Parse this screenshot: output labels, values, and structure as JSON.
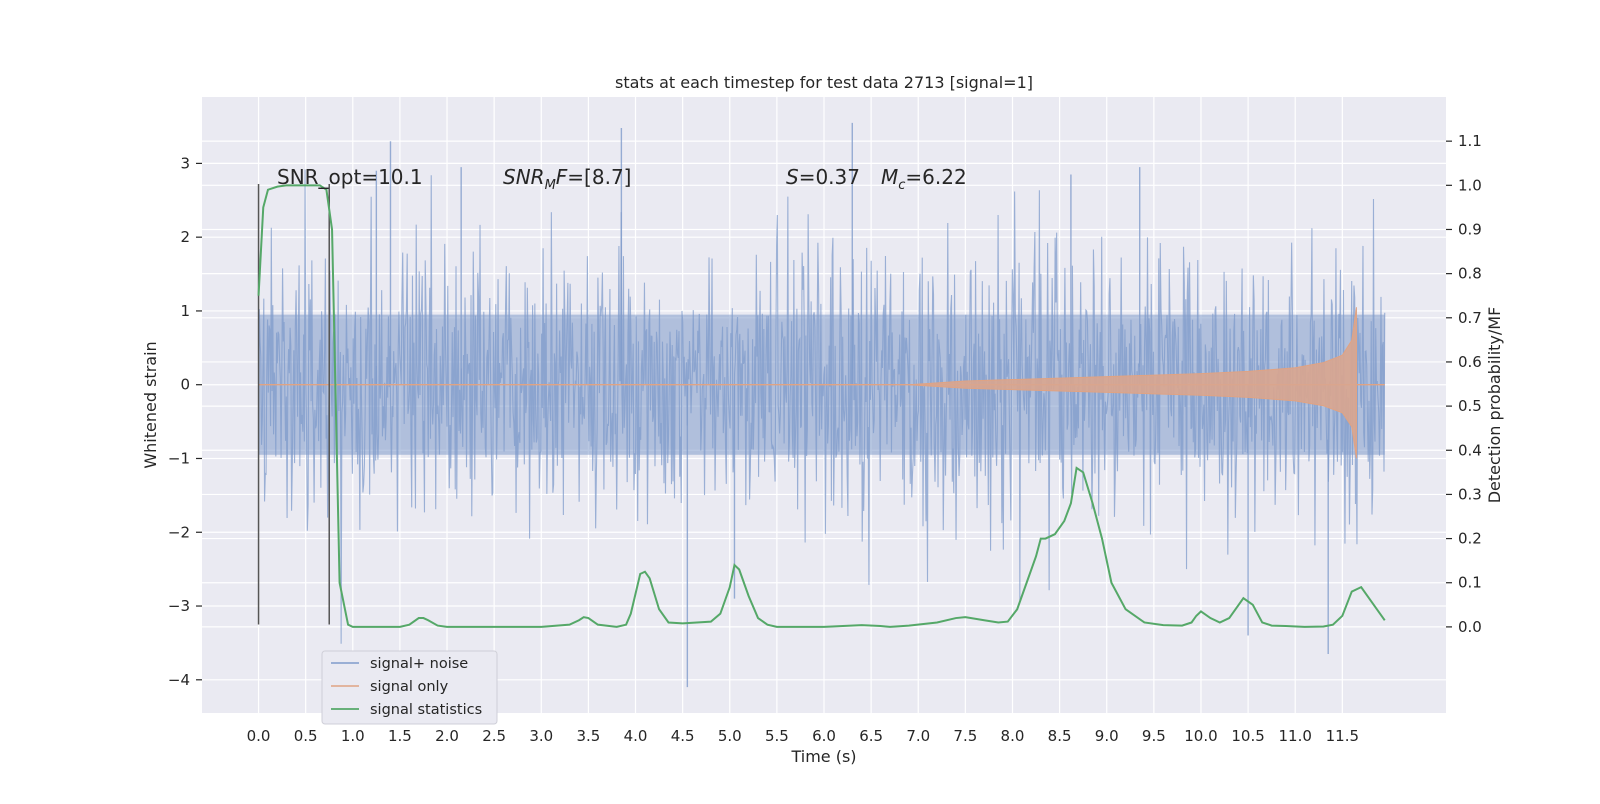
{
  "chart_data": {
    "type": "line",
    "title": "stats at each timestep for test data 2713 [signal=1]",
    "xlabel": "Time (s)",
    "ylabel": "Whitened strain",
    "y2label": "Detection probability/MF",
    "xlim": [
      -0.6,
      12.6
    ],
    "ylim": [
      -4.45,
      3.9
    ],
    "y2lim": [
      -0.195,
      1.2
    ],
    "x_ticks": [
      0.0,
      0.5,
      1.0,
      1.5,
      2.0,
      2.5,
      3.0,
      3.5,
      4.0,
      4.5,
      5.0,
      5.5,
      6.0,
      6.5,
      7.0,
      7.5,
      8.0,
      8.5,
      9.0,
      9.5,
      10.0,
      10.5,
      11.0,
      11.5
    ],
    "x_tick_labels": [
      "0.0",
      "0.5",
      "1.0",
      "1.5",
      "2.0",
      "2.5",
      "3.0",
      "3.5",
      "4.0",
      "4.5",
      "5.0",
      "5.5",
      "6.0",
      "6.5",
      "7.0",
      "7.5",
      "8.0",
      "8.5",
      "9.0",
      "9.5",
      "10.0",
      "10.5",
      "11.0",
      "11.5"
    ],
    "y_ticks": [
      -4,
      -3,
      -2,
      -1,
      0,
      1,
      2,
      3
    ],
    "y_tick_labels": [
      "−4",
      "−3",
      "−2",
      "−1",
      "0",
      "1",
      "2",
      "3"
    ],
    "y2_ticks": [
      0.0,
      0.1,
      0.2,
      0.3,
      0.4,
      0.5,
      0.6,
      0.7,
      0.8,
      0.9,
      1.0,
      1.1
    ],
    "y2_tick_labels": [
      "0.0",
      "0.1",
      "0.2",
      "0.3",
      "0.4",
      "0.5",
      "0.6",
      "0.7",
      "0.8",
      "0.9",
      "1.0",
      "1.1"
    ],
    "grid": true,
    "legend_position": "lower-left",
    "series": [
      {
        "name": "signal+ noise",
        "color": "#7f9bcb",
        "description_values": "dense whitened noise between about -4.1 and 3.55 over 0.0-11.95 s",
        "x_range": [
          0.0,
          11.95
        ],
        "y_extremes": [
          -4.1,
          3.55
        ]
      },
      {
        "name": "signal only",
        "color": "#dd8452",
        "chirp_start": 6.9,
        "chirp_merger": 11.65,
        "envelope": {
          "x": [
            6.9,
            7.5,
            8.0,
            8.5,
            9.0,
            9.5,
            10.0,
            10.5,
            11.0,
            11.3,
            11.5,
            11.6,
            11.65
          ],
          "y": [
            0.0,
            0.05,
            0.07,
            0.09,
            0.11,
            0.13,
            0.15,
            0.18,
            0.23,
            0.3,
            0.4,
            0.6,
            1.05
          ]
        }
      },
      {
        "name": "signal statistics",
        "color": "#55a868",
        "axis": "right",
        "x": [
          0.0,
          0.05,
          0.1,
          0.2,
          0.3,
          0.4,
          0.5,
          0.6,
          0.65,
          0.72,
          0.78,
          0.82,
          0.86,
          0.95,
          1.0,
          1.5,
          1.6,
          1.7,
          1.75,
          1.8,
          1.9,
          2.0,
          3.0,
          3.3,
          3.4,
          3.45,
          3.5,
          3.6,
          3.8,
          3.9,
          3.95,
          4.05,
          4.1,
          4.15,
          4.25,
          4.35,
          4.5,
          4.8,
          4.9,
          5.0,
          5.05,
          5.1,
          5.2,
          5.3,
          5.4,
          5.5,
          6.0,
          6.2,
          6.4,
          6.6,
          6.7,
          6.9,
          7.2,
          7.4,
          7.5,
          7.7,
          7.85,
          7.95,
          8.05,
          8.15,
          8.25,
          8.3,
          8.35,
          8.45,
          8.55,
          8.62,
          8.68,
          8.75,
          8.85,
          8.95,
          9.05,
          9.2,
          9.4,
          9.6,
          9.8,
          9.9,
          9.95,
          10.0,
          10.1,
          10.2,
          10.3,
          10.4,
          10.45,
          10.55,
          10.65,
          10.75,
          10.9,
          11.1,
          11.3,
          11.4,
          11.5,
          11.6,
          11.7,
          11.8,
          11.9,
          11.95
        ],
        "y": [
          0.75,
          0.95,
          0.99,
          0.997,
          1.0,
          1.0,
          1.0,
          1.0,
          1.0,
          0.99,
          0.9,
          0.5,
          0.1,
          0.005,
          0.0,
          0.0,
          0.005,
          0.02,
          0.02,
          0.015,
          0.003,
          0.0,
          0.0,
          0.005,
          0.015,
          0.022,
          0.02,
          0.005,
          0.0,
          0.005,
          0.03,
          0.12,
          0.125,
          0.11,
          0.04,
          0.01,
          0.008,
          0.012,
          0.03,
          0.09,
          0.14,
          0.13,
          0.07,
          0.02,
          0.005,
          0.0,
          0.0,
          0.002,
          0.004,
          0.002,
          0.0,
          0.003,
          0.01,
          0.02,
          0.022,
          0.015,
          0.01,
          0.012,
          0.04,
          0.1,
          0.16,
          0.2,
          0.2,
          0.21,
          0.24,
          0.28,
          0.36,
          0.35,
          0.28,
          0.2,
          0.1,
          0.04,
          0.01,
          0.004,
          0.003,
          0.01,
          0.025,
          0.035,
          0.02,
          0.01,
          0.02,
          0.05,
          0.065,
          0.05,
          0.01,
          0.003,
          0.002,
          0.0,
          0.001,
          0.005,
          0.025,
          0.08,
          0.09,
          0.06,
          0.03,
          0.015
        ]
      }
    ],
    "vlines": [
      0.0,
      0.75
    ],
    "annotations": [
      {
        "text": "SNR_opt=10.1",
        "x": 0.2,
        "y": 2.85
      },
      {
        "text_parts": [
          "SNR",
          "M",
          "F=[8.7]"
        ],
        "x": 2.6,
        "y": 2.85
      },
      {
        "text_parts": [
          "S",
          "=0.37"
        ],
        "x": 5.6,
        "y": 2.85
      },
      {
        "text_parts": [
          "M",
          "c",
          "=6.22"
        ],
        "x": 6.6,
        "y": 2.85
      }
    ]
  }
}
